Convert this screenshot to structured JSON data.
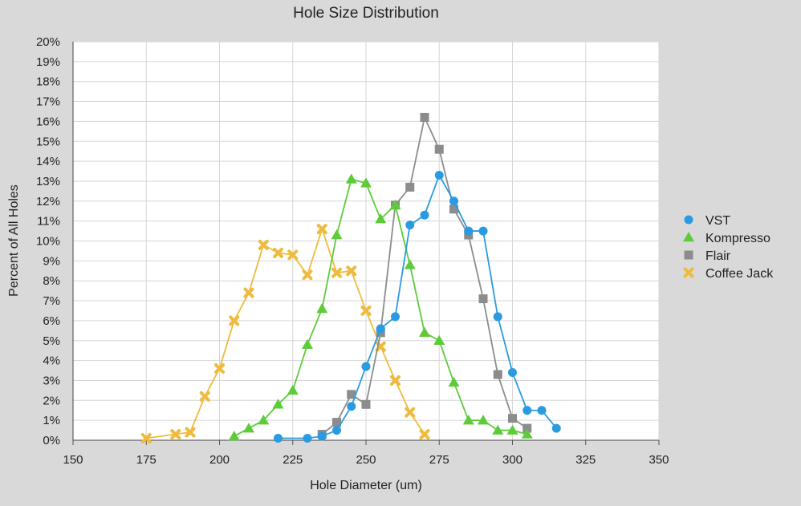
{
  "chart_data": {
    "type": "line",
    "title": "Hole Size Distribution",
    "xlabel": "Hole Diameter (um)",
    "ylabel": "Percent of All Holes",
    "xlim": [
      150,
      350
    ],
    "ylim": [
      0,
      20
    ],
    "x_ticks": [
      150,
      175,
      200,
      225,
      250,
      275,
      300,
      325,
      350
    ],
    "y_ticks": [
      0,
      1,
      2,
      3,
      4,
      5,
      6,
      7,
      8,
      9,
      10,
      11,
      12,
      13,
      14,
      15,
      16,
      17,
      18,
      19,
      20
    ],
    "y_tick_suffix": "%",
    "grid": true,
    "legend_position": "right",
    "series": [
      {
        "name": "VST",
        "color": "#2a9be0",
        "marker": "circle",
        "points": [
          [
            220,
            0.1
          ],
          [
            230,
            0.1
          ],
          [
            235,
            0.2
          ],
          [
            240,
            0.5
          ],
          [
            245,
            1.7
          ],
          [
            250,
            3.7
          ],
          [
            255,
            5.6
          ],
          [
            260,
            6.2
          ],
          [
            265,
            10.8
          ],
          [
            270,
            11.3
          ],
          [
            275,
            13.3
          ],
          [
            280,
            12.0
          ],
          [
            285,
            10.5
          ],
          [
            290,
            10.5
          ],
          [
            295,
            6.2
          ],
          [
            300,
            3.4
          ],
          [
            305,
            1.5
          ],
          [
            310,
            1.5
          ],
          [
            315,
            0.6
          ]
        ]
      },
      {
        "name": "Kompresso",
        "color": "#5dcb3a",
        "marker": "triangle",
        "points": [
          [
            205,
            0.2
          ],
          [
            210,
            0.6
          ],
          [
            215,
            1.0
          ],
          [
            220,
            1.8
          ],
          [
            225,
            2.5
          ],
          [
            230,
            4.8
          ],
          [
            235,
            6.6
          ],
          [
            240,
            10.3
          ],
          [
            245,
            13.1
          ],
          [
            250,
            12.9
          ],
          [
            255,
            11.1
          ],
          [
            260,
            11.8
          ],
          [
            265,
            8.8
          ],
          [
            270,
            5.4
          ],
          [
            275,
            5.0
          ],
          [
            280,
            2.9
          ],
          [
            285,
            1.0
          ],
          [
            290,
            1.0
          ],
          [
            295,
            0.5
          ],
          [
            300,
            0.5
          ],
          [
            305,
            0.3
          ]
        ]
      },
      {
        "name": "Flair",
        "color": "#8c8c8c",
        "marker": "square",
        "points": [
          [
            235,
            0.3
          ],
          [
            240,
            0.9
          ],
          [
            245,
            2.3
          ],
          [
            250,
            1.8
          ],
          [
            255,
            5.4
          ],
          [
            260,
            11.8
          ],
          [
            265,
            12.7
          ],
          [
            270,
            16.2
          ],
          [
            275,
            14.6
          ],
          [
            280,
            11.6
          ],
          [
            285,
            10.3
          ],
          [
            290,
            7.1
          ],
          [
            295,
            3.3
          ],
          [
            300,
            1.1
          ],
          [
            305,
            0.6
          ]
        ]
      },
      {
        "name": "Coffee Jack",
        "color": "#eebb3d",
        "marker": "x",
        "points": [
          [
            175,
            0.1
          ],
          [
            185,
            0.3
          ],
          [
            190,
            0.4
          ],
          [
            195,
            2.2
          ],
          [
            200,
            3.6
          ],
          [
            205,
            6.0
          ],
          [
            210,
            7.4
          ],
          [
            215,
            9.8
          ],
          [
            220,
            9.4
          ],
          [
            225,
            9.3
          ],
          [
            230,
            8.3
          ],
          [
            235,
            10.6
          ],
          [
            240,
            8.4
          ],
          [
            245,
            8.5
          ],
          [
            250,
            6.5
          ],
          [
            255,
            4.7
          ],
          [
            260,
            3.0
          ],
          [
            265,
            1.4
          ],
          [
            270,
            0.3
          ]
        ]
      }
    ]
  }
}
